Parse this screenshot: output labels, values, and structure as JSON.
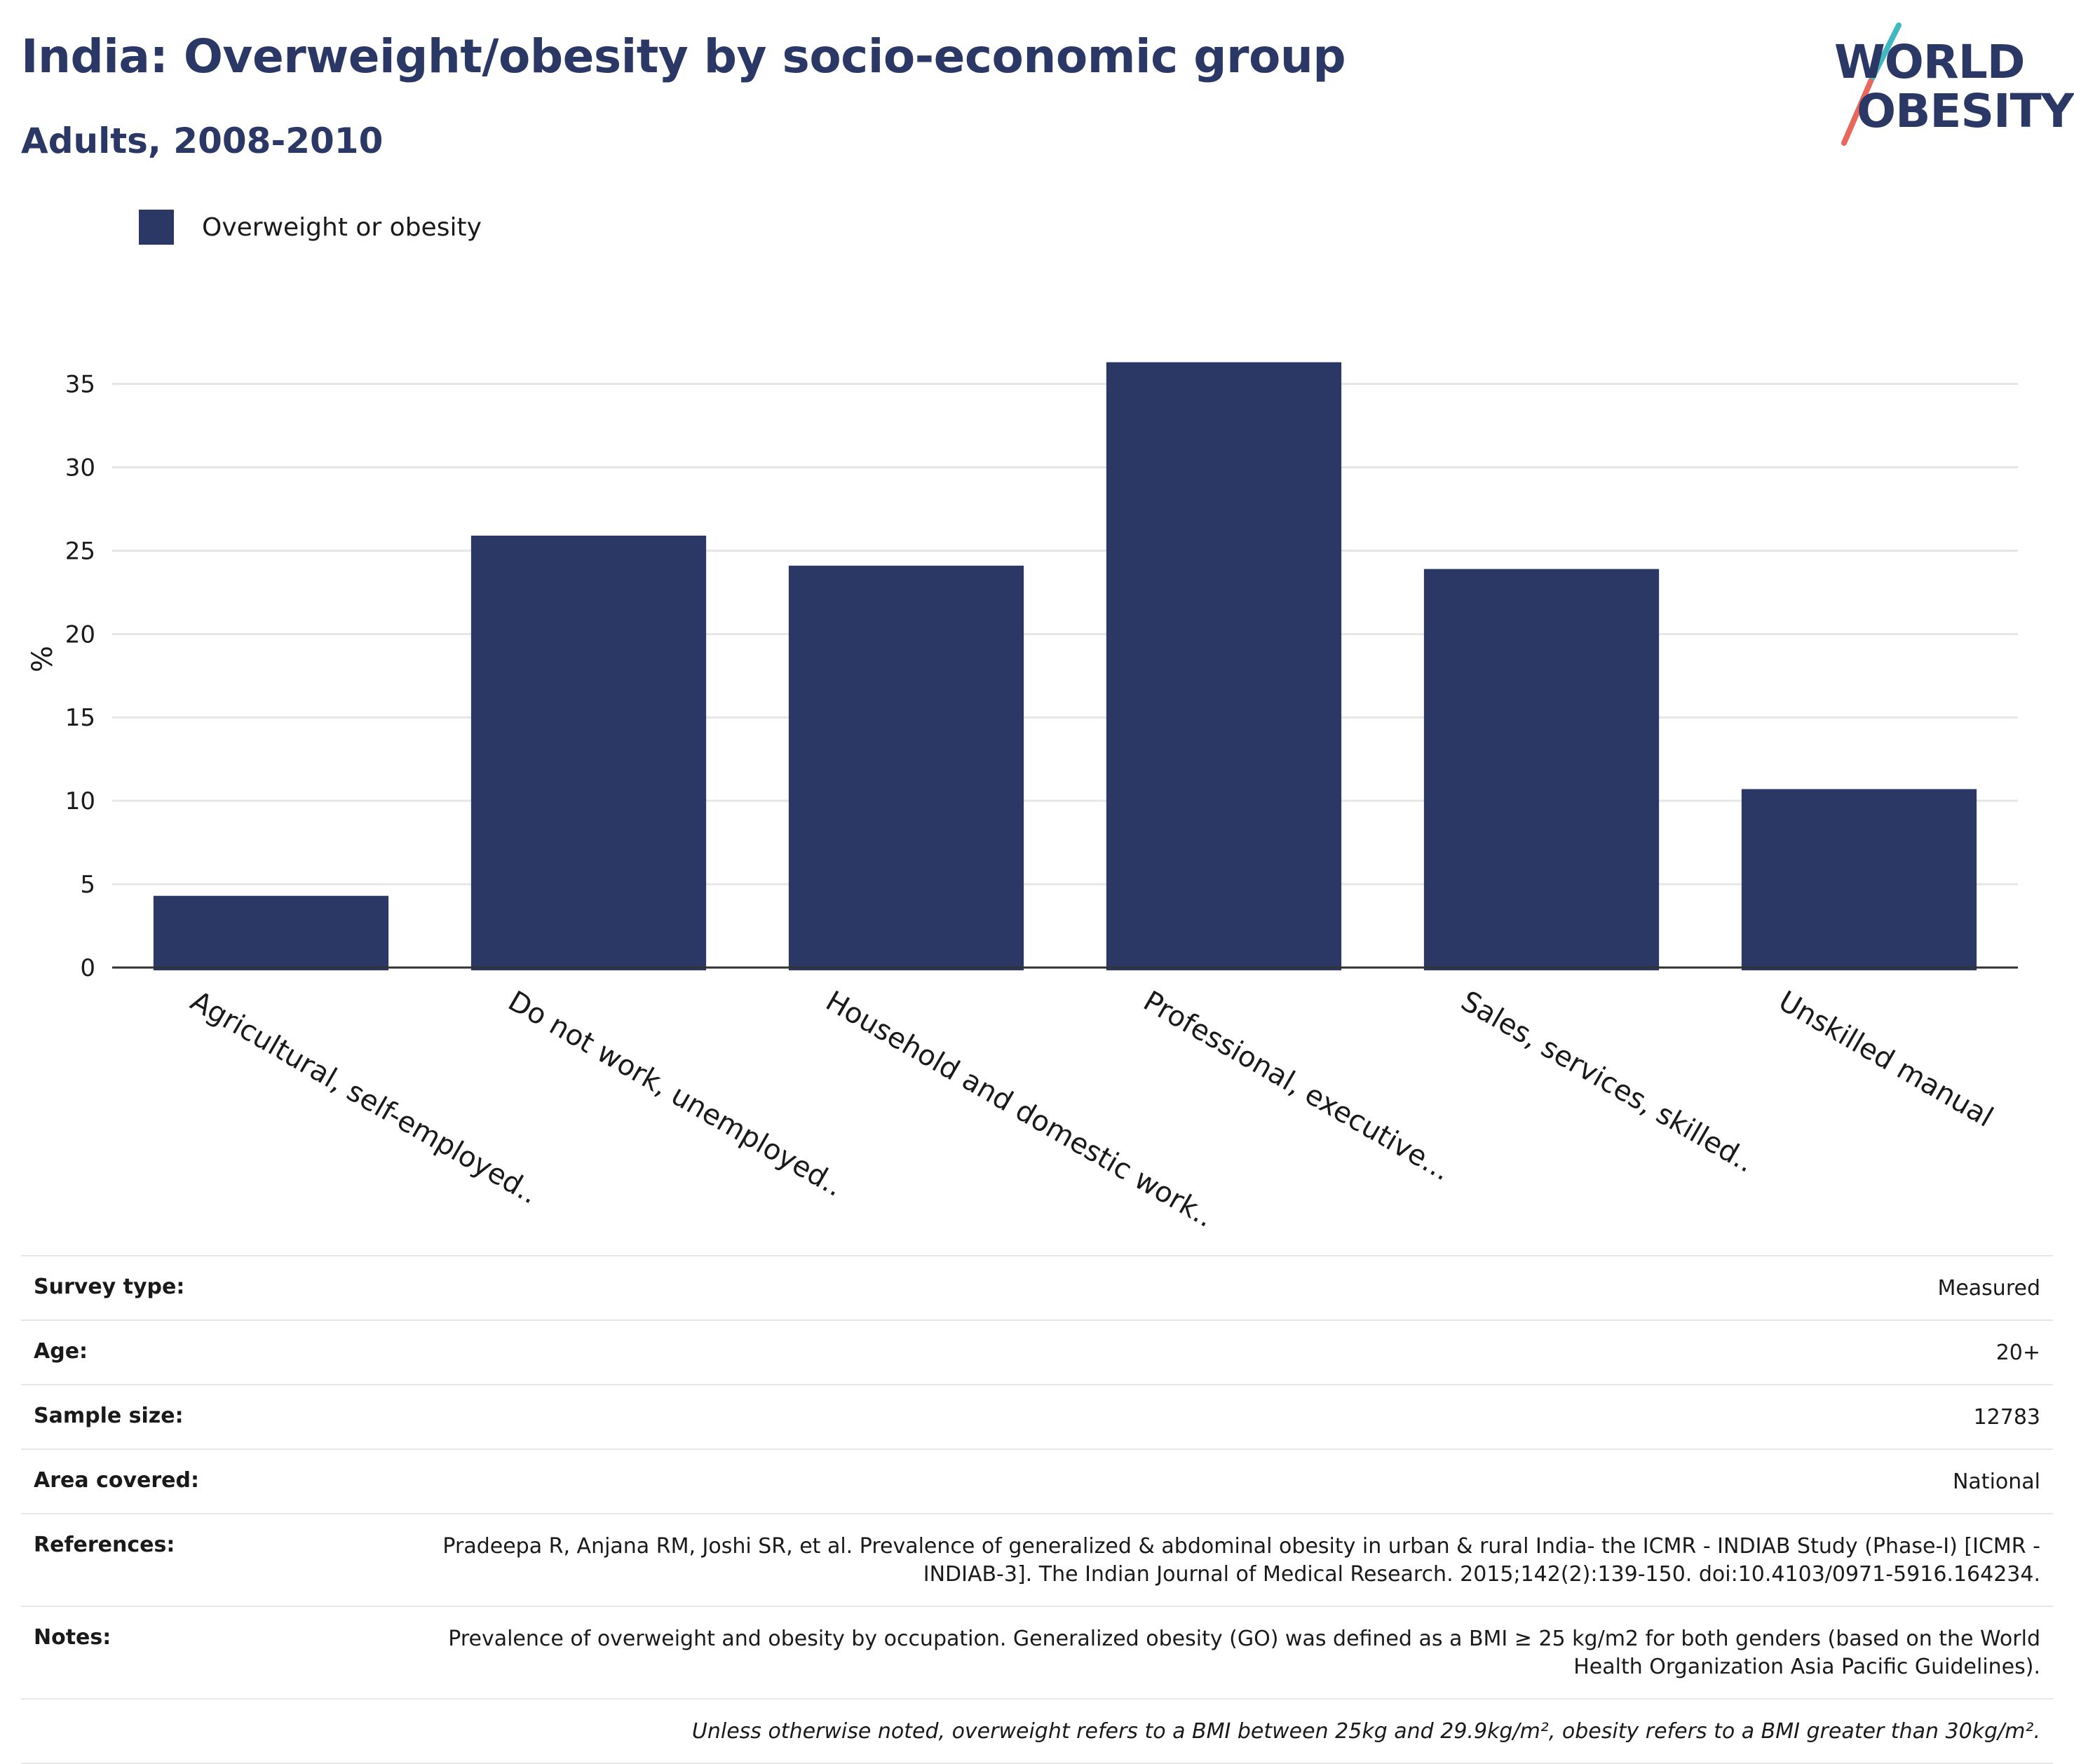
{
  "header": {
    "title": "India: Overweight/obesity by socio-economic group",
    "subtitle": "Adults, 2008-2010"
  },
  "logo": {
    "line1": "WORLD",
    "line2": "OBESITY",
    "colors": {
      "text": "#2b3765",
      "slash_top": "#3fb8c1",
      "slash_bottom": "#e8665a"
    }
  },
  "chart_data": {
    "type": "bar",
    "categories": [
      "Agricultural, self-employed..",
      "Do not work, unemployed..",
      "Household and domestic work..",
      "Professional, executive...",
      "Sales, services, skilled..",
      "Unskilled manual"
    ],
    "series": [
      {
        "name": "Overweight or obesity",
        "values": [
          4.3,
          25.9,
          24.1,
          36.3,
          23.9,
          10.7
        ],
        "color": "#2b3765"
      }
    ],
    "ylabel": "%",
    "ylim": [
      0,
      37
    ],
    "yticks": [
      0,
      5,
      10,
      15,
      20,
      25,
      30,
      35
    ],
    "grid": true,
    "legend_position": "top-left"
  },
  "meta": [
    {
      "key": "Survey type:",
      "value": "Measured"
    },
    {
      "key": "Age:",
      "value": "20+"
    },
    {
      "key": "Sample size:",
      "value": "12783"
    },
    {
      "key": "Area covered:",
      "value": "National"
    },
    {
      "key": "References:",
      "value": "Pradeepa R, Anjana RM, Joshi SR, et al. Prevalence of generalized & abdominal obesity in urban & rural India- the ICMR - INDIAB Study (Phase-I) [ICMR - INDIAB-3]. The Indian Journal of Medical Research. 2015;142(2):139-150. doi:10.4103/0971-5916.164234."
    },
    {
      "key": "Notes:",
      "value": "Prevalence of overweight and obesity by occupation. Generalized obesity (GO) was defined as a BMI ≥ 25 kg/m2 for both genders (based on the World Health Organization Asia Pacific Guidelines)."
    }
  ],
  "footnote": "Unless otherwise noted, overweight refers to a BMI between 25kg and 29.9kg/m², obesity refers to a BMI greater than 30kg/m²."
}
